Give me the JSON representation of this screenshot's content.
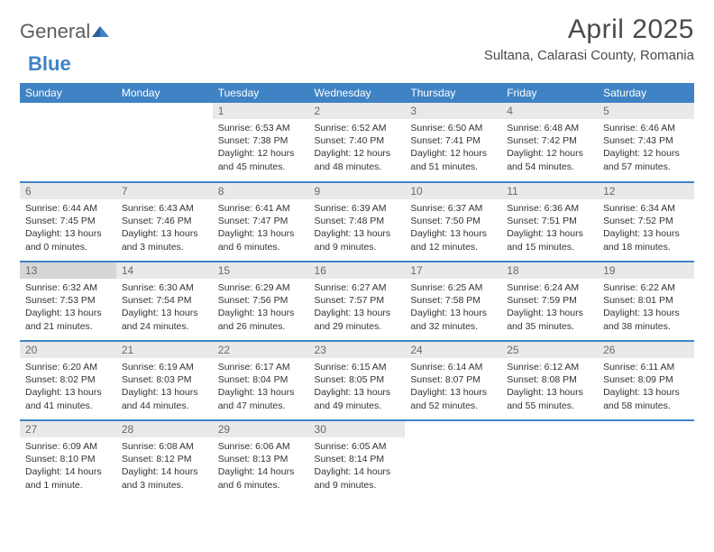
{
  "logo": {
    "general": "General",
    "blue": "Blue"
  },
  "title": "April 2025",
  "location": "Sultana, Calarasi County, Romania",
  "colors": {
    "header_bg": "#3f83c4",
    "header_text": "#ffffff",
    "daynum_bg": "#e9e9e9",
    "daynum_selected_bg": "#d6d6d6",
    "daynum_text": "#6a6a6a",
    "border": "#3f83c4",
    "body_text": "#333333",
    "title_text": "#4a4a4a",
    "logo_gray": "#5e5e5e",
    "logo_blue": "#3f83c4"
  },
  "dayHeaders": [
    "Sunday",
    "Monday",
    "Tuesday",
    "Wednesday",
    "Thursday",
    "Friday",
    "Saturday"
  ],
  "weeks": [
    [
      null,
      null,
      {
        "n": "1",
        "sunrise": "Sunrise: 6:53 AM",
        "sunset": "Sunset: 7:38 PM",
        "daylight": "Daylight: 12 hours and 45 minutes."
      },
      {
        "n": "2",
        "sunrise": "Sunrise: 6:52 AM",
        "sunset": "Sunset: 7:40 PM",
        "daylight": "Daylight: 12 hours and 48 minutes."
      },
      {
        "n": "3",
        "sunrise": "Sunrise: 6:50 AM",
        "sunset": "Sunset: 7:41 PM",
        "daylight": "Daylight: 12 hours and 51 minutes."
      },
      {
        "n": "4",
        "sunrise": "Sunrise: 6:48 AM",
        "sunset": "Sunset: 7:42 PM",
        "daylight": "Daylight: 12 hours and 54 minutes."
      },
      {
        "n": "5",
        "sunrise": "Sunrise: 6:46 AM",
        "sunset": "Sunset: 7:43 PM",
        "daylight": "Daylight: 12 hours and 57 minutes."
      }
    ],
    [
      {
        "n": "6",
        "sunrise": "Sunrise: 6:44 AM",
        "sunset": "Sunset: 7:45 PM",
        "daylight": "Daylight: 13 hours and 0 minutes."
      },
      {
        "n": "7",
        "sunrise": "Sunrise: 6:43 AM",
        "sunset": "Sunset: 7:46 PM",
        "daylight": "Daylight: 13 hours and 3 minutes."
      },
      {
        "n": "8",
        "sunrise": "Sunrise: 6:41 AM",
        "sunset": "Sunset: 7:47 PM",
        "daylight": "Daylight: 13 hours and 6 minutes."
      },
      {
        "n": "9",
        "sunrise": "Sunrise: 6:39 AM",
        "sunset": "Sunset: 7:48 PM",
        "daylight": "Daylight: 13 hours and 9 minutes."
      },
      {
        "n": "10",
        "sunrise": "Sunrise: 6:37 AM",
        "sunset": "Sunset: 7:50 PM",
        "daylight": "Daylight: 13 hours and 12 minutes."
      },
      {
        "n": "11",
        "sunrise": "Sunrise: 6:36 AM",
        "sunset": "Sunset: 7:51 PM",
        "daylight": "Daylight: 13 hours and 15 minutes."
      },
      {
        "n": "12",
        "sunrise": "Sunrise: 6:34 AM",
        "sunset": "Sunset: 7:52 PM",
        "daylight": "Daylight: 13 hours and 18 minutes."
      }
    ],
    [
      {
        "n": "13",
        "selected": true,
        "sunrise": "Sunrise: 6:32 AM",
        "sunset": "Sunset: 7:53 PM",
        "daylight": "Daylight: 13 hours and 21 minutes."
      },
      {
        "n": "14",
        "sunrise": "Sunrise: 6:30 AM",
        "sunset": "Sunset: 7:54 PM",
        "daylight": "Daylight: 13 hours and 24 minutes."
      },
      {
        "n": "15",
        "sunrise": "Sunrise: 6:29 AM",
        "sunset": "Sunset: 7:56 PM",
        "daylight": "Daylight: 13 hours and 26 minutes."
      },
      {
        "n": "16",
        "sunrise": "Sunrise: 6:27 AM",
        "sunset": "Sunset: 7:57 PM",
        "daylight": "Daylight: 13 hours and 29 minutes."
      },
      {
        "n": "17",
        "sunrise": "Sunrise: 6:25 AM",
        "sunset": "Sunset: 7:58 PM",
        "daylight": "Daylight: 13 hours and 32 minutes."
      },
      {
        "n": "18",
        "sunrise": "Sunrise: 6:24 AM",
        "sunset": "Sunset: 7:59 PM",
        "daylight": "Daylight: 13 hours and 35 minutes."
      },
      {
        "n": "19",
        "sunrise": "Sunrise: 6:22 AM",
        "sunset": "Sunset: 8:01 PM",
        "daylight": "Daylight: 13 hours and 38 minutes."
      }
    ],
    [
      {
        "n": "20",
        "sunrise": "Sunrise: 6:20 AM",
        "sunset": "Sunset: 8:02 PM",
        "daylight": "Daylight: 13 hours and 41 minutes."
      },
      {
        "n": "21",
        "sunrise": "Sunrise: 6:19 AM",
        "sunset": "Sunset: 8:03 PM",
        "daylight": "Daylight: 13 hours and 44 minutes."
      },
      {
        "n": "22",
        "sunrise": "Sunrise: 6:17 AM",
        "sunset": "Sunset: 8:04 PM",
        "daylight": "Daylight: 13 hours and 47 minutes."
      },
      {
        "n": "23",
        "sunrise": "Sunrise: 6:15 AM",
        "sunset": "Sunset: 8:05 PM",
        "daylight": "Daylight: 13 hours and 49 minutes."
      },
      {
        "n": "24",
        "sunrise": "Sunrise: 6:14 AM",
        "sunset": "Sunset: 8:07 PM",
        "daylight": "Daylight: 13 hours and 52 minutes."
      },
      {
        "n": "25",
        "sunrise": "Sunrise: 6:12 AM",
        "sunset": "Sunset: 8:08 PM",
        "daylight": "Daylight: 13 hours and 55 minutes."
      },
      {
        "n": "26",
        "sunrise": "Sunrise: 6:11 AM",
        "sunset": "Sunset: 8:09 PM",
        "daylight": "Daylight: 13 hours and 58 minutes."
      }
    ],
    [
      {
        "n": "27",
        "sunrise": "Sunrise: 6:09 AM",
        "sunset": "Sunset: 8:10 PM",
        "daylight": "Daylight: 14 hours and 1 minute."
      },
      {
        "n": "28",
        "sunrise": "Sunrise: 6:08 AM",
        "sunset": "Sunset: 8:12 PM",
        "daylight": "Daylight: 14 hours and 3 minutes."
      },
      {
        "n": "29",
        "sunrise": "Sunrise: 6:06 AM",
        "sunset": "Sunset: 8:13 PM",
        "daylight": "Daylight: 14 hours and 6 minutes."
      },
      {
        "n": "30",
        "sunrise": "Sunrise: 6:05 AM",
        "sunset": "Sunset: 8:14 PM",
        "daylight": "Daylight: 14 hours and 9 minutes."
      },
      null,
      null,
      null
    ]
  ]
}
